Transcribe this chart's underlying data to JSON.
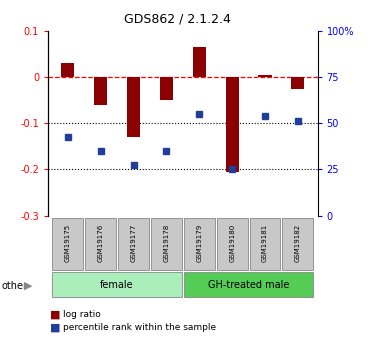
{
  "title": "GDS862 / 2.1.2.4",
  "samples": [
    "GSM19175",
    "GSM19176",
    "GSM19177",
    "GSM19178",
    "GSM19179",
    "GSM19180",
    "GSM19181",
    "GSM19182"
  ],
  "log_ratios": [
    0.03,
    -0.06,
    -0.13,
    -0.05,
    0.065,
    -0.205,
    0.005,
    -0.025
  ],
  "pct_ranks_left": [
    -0.13,
    -0.16,
    -0.19,
    -0.16,
    -0.08,
    -0.2,
    -0.085,
    -0.095
  ],
  "bar_color": "#8B0000",
  "dot_color": "#1F3F99",
  "ylim_left": [
    -0.3,
    0.1
  ],
  "yticks_left": [
    0.1,
    0.0,
    -0.1,
    -0.2,
    -0.3
  ],
  "ytick_labels_left": [
    "0.1",
    "0",
    "-0.1",
    "-0.2",
    "-0.3"
  ],
  "yticks_right": [
    100,
    75,
    50,
    25,
    0
  ],
  "ytick_labels_right": [
    "100%",
    "75",
    "50",
    "25",
    "0"
  ],
  "group_female_color": "#AAEEBB",
  "group_male_color": "#55CC55",
  "sample_box_color": "#C8C8C8",
  "bar_width": 0.4
}
